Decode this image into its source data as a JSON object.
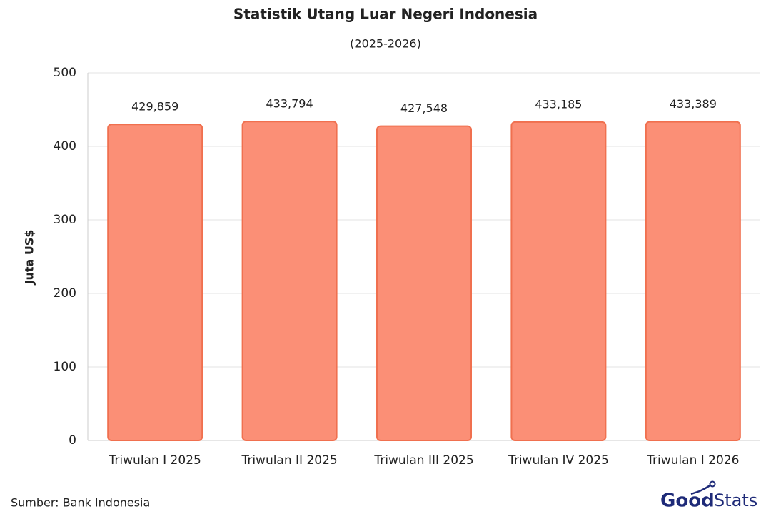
{
  "chart_data": {
    "type": "bar",
    "title": "Statistik Utang Luar Negeri Indonesia",
    "subtitle": "(2025-2026)",
    "y_label": "Juta US$",
    "categories": [
      "Triwulan I 2025",
      "Triwulan II 2025",
      "Triwulan III 2025",
      "Triwulan IV 2025",
      "Triwulan I 2026"
    ],
    "values": [
      429.859,
      433.794,
      427.548,
      433.185,
      433.389
    ],
    "value_labels": [
      "429,859",
      "433,794",
      "427,548",
      "433,185",
      "433,389"
    ],
    "color": "#fb8f76",
    "stroke": "#f0704f",
    "ylim": [
      0,
      500
    ],
    "yticks": [
      0,
      100,
      200,
      300,
      400,
      500
    ],
    "grid": true,
    "source": "Sumber: Bank Indonesia",
    "logo": [
      "Good",
      "Stats"
    ]
  }
}
